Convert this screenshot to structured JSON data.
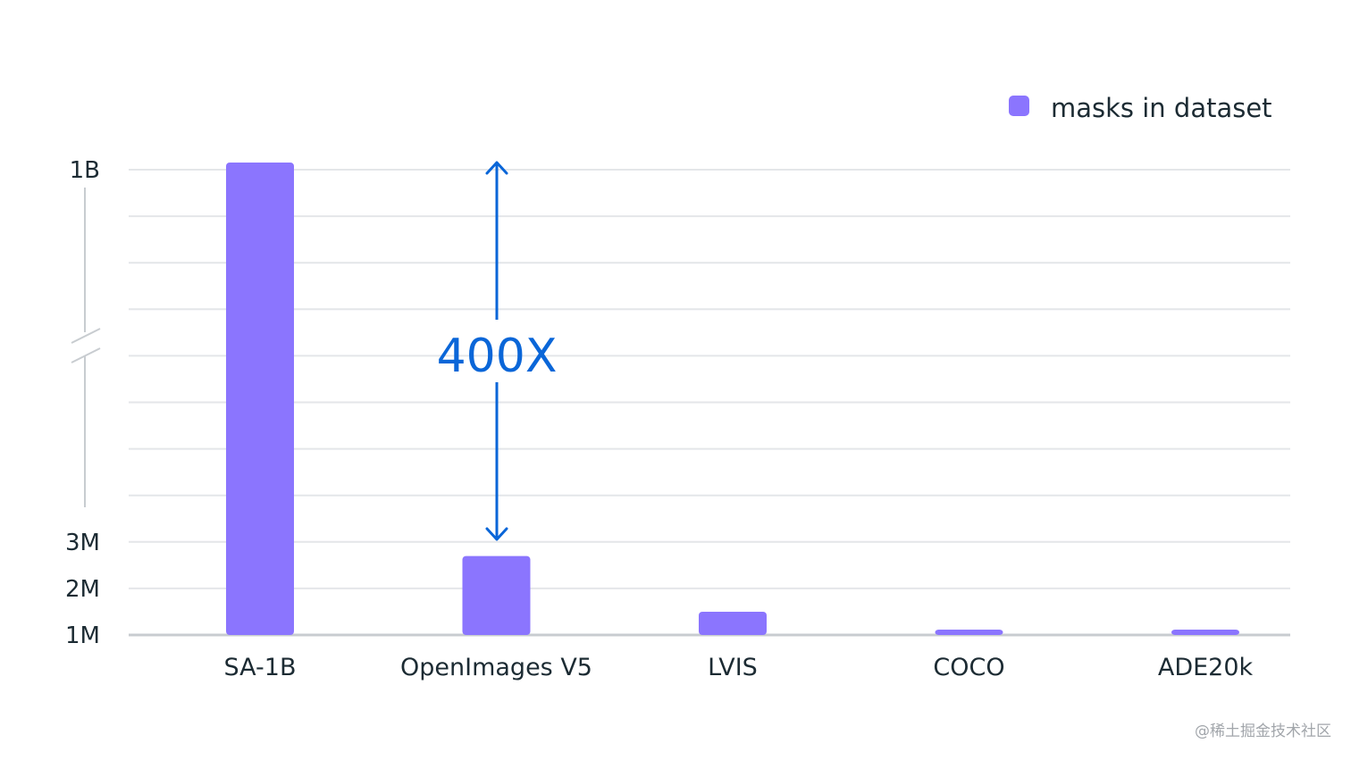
{
  "chart_data": {
    "type": "bar",
    "categories": [
      "SA-1B",
      "OpenImages V5",
      "LVIS",
      "COCO",
      "ADE20k"
    ],
    "series": [
      {
        "name": "masks in dataset",
        "values": [
          1100000000,
          2700000,
          1500000,
          1100000,
          1100000
        ]
      }
    ],
    "y_axis": {
      "scale": "broken",
      "ticks": [
        "1M",
        "2M",
        "3M",
        "1B"
      ],
      "lower_range": [
        1000000,
        3000000
      ],
      "break_marker": true
    },
    "annotation": {
      "text": "400X",
      "from_category": "OpenImages V5",
      "to_category": "SA-1B"
    },
    "legend": {
      "position": "top-right",
      "label": "masks in dataset"
    },
    "grid": true,
    "xlabel": "",
    "ylabel": ""
  },
  "colors": {
    "bar": "#8b75fe",
    "annotation": "#0a66d8",
    "grid": "#e4e6e9",
    "axis": "#c8ccd0",
    "text": "#1c2b33"
  },
  "watermark": "@稀土掘金技术社区"
}
